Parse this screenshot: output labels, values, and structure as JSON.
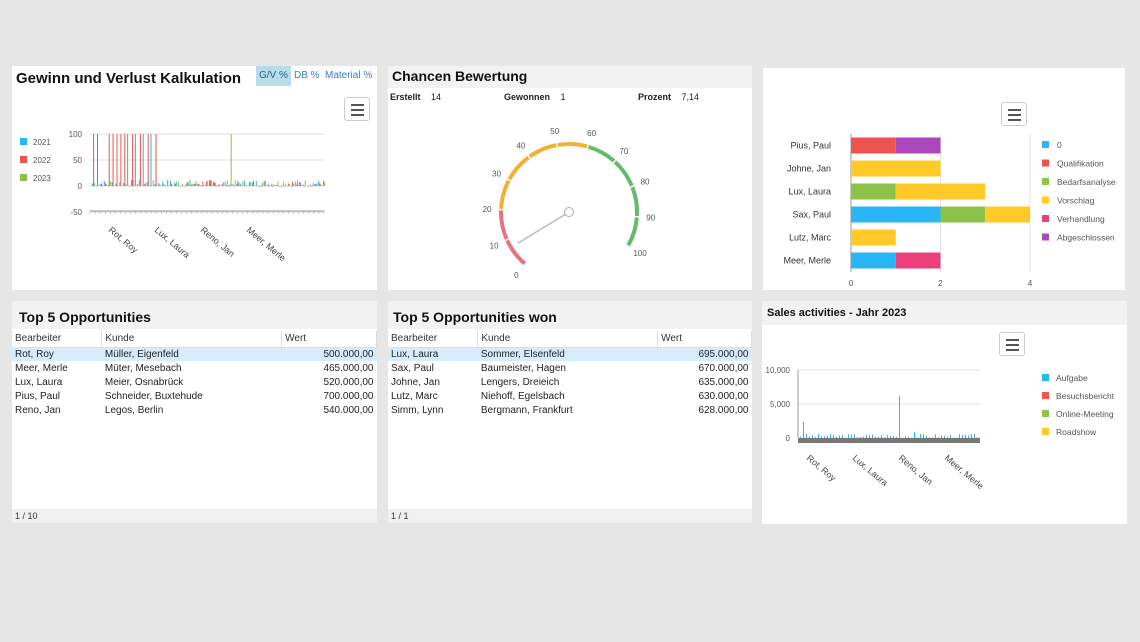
{
  "gv": {
    "title": "Gewinn und Verlust Kalkulation",
    "tabs": [
      "G/V %",
      "DB %",
      "Material %"
    ],
    "active_tab": "G/V %",
    "chart_data": {
      "type": "bar",
      "series": [
        {
          "name": "2021",
          "color": "#29b6f6"
        },
        {
          "name": "2022",
          "color": "#ef5350"
        },
        {
          "name": "2023",
          "color": "#8bc34a"
        }
      ],
      "yticks": [
        "100",
        "50",
        "0",
        "-50"
      ],
      "ylim": [
        -50,
        100
      ],
      "xtick_labels": [
        "Rot, Roy",
        "Lux, Laura",
        "Reno, Jan",
        "Meer, Merle"
      ]
    }
  },
  "chancen": {
    "title": "Chancen Bewertung",
    "erstellt_label": "Erstellt",
    "erstellt_value": "14",
    "gewonnen_label": "Gewonnen",
    "gewonnen_value": "1",
    "prozent_label": "Prozent",
    "prozent_value": "7,14",
    "gauge": {
      "value": 7.14,
      "min": 0,
      "max": 100,
      "ticks": [
        "0",
        "10",
        "20",
        "30",
        "40",
        "50",
        "60",
        "70",
        "80",
        "90",
        "100"
      ],
      "bands": [
        {
          "from": 0,
          "to": 20,
          "color": "#e57383"
        },
        {
          "from": 20,
          "to": 60,
          "color": "#f2b134"
        },
        {
          "from": 60,
          "to": 100,
          "color": "#66bb6a"
        }
      ]
    }
  },
  "stack": {
    "chart_data": {
      "type": "bar",
      "orientation": "horizontal",
      "stacked": true,
      "categories": [
        "Pius, Paul",
        "Johne, Jan",
        "Lux, Laura",
        "Sax, Paul",
        "Lutz, Marc",
        "Meer, Merle"
      ],
      "series": [
        {
          "name": "0",
          "color": "#29b6f6",
          "values": [
            0,
            0,
            0,
            2,
            0,
            1
          ]
        },
        {
          "name": "Qualifikation",
          "color": "#ef5350",
          "values": [
            1,
            0,
            0,
            0,
            0,
            0
          ]
        },
        {
          "name": "Bedarfsanalyse",
          "color": "#8bc34a",
          "values": [
            0,
            0,
            1,
            1,
            0,
            0
          ]
        },
        {
          "name": "Vorschlag",
          "color": "#ffca28",
          "values": [
            0,
            2,
            2,
            1,
            1,
            0
          ]
        },
        {
          "name": "Verhandlung",
          "color": "#ec407a",
          "values": [
            0,
            0,
            0,
            0,
            0,
            1
          ]
        },
        {
          "name": "Abgeschlossen",
          "color": "#ab47bc",
          "values": [
            1,
            0,
            0,
            0,
            0,
            0
          ]
        }
      ],
      "xticks": [
        "0",
        "2",
        "4"
      ],
      "xlim": [
        0,
        4
      ]
    }
  },
  "top5": {
    "title": "Top 5 Opportunities",
    "columns": [
      "Bearbeiter",
      "Kunde",
      "Wert"
    ],
    "rows": [
      [
        "Rot, Roy",
        "Müller, Eigenfeld",
        "500.000,00"
      ],
      [
        "Meer, Merle",
        "Müter, Mesebach",
        "465.000,00"
      ],
      [
        "Lux, Laura",
        "Meier, Osnabrück",
        "520.000,00"
      ],
      [
        "Pius, Paul",
        "Schneider, Buxtehude",
        "700.000,00"
      ],
      [
        "Reno, Jan",
        "Legos, Berlin",
        "540.000,00"
      ]
    ],
    "pager": "1 / 10"
  },
  "top5won": {
    "title": "Top 5 Opportunities won",
    "columns": [
      "Bearbeiter",
      "Kunde",
      "Wert"
    ],
    "rows": [
      [
        "Lux, Laura",
        "Sommer, Elsenfeld",
        "695.000,00"
      ],
      [
        "Sax, Paul",
        "Baumeister, Hagen",
        "670.000,00"
      ],
      [
        "Johne, Jan",
        "Lengers, Dreieich",
        "635.000,00"
      ],
      [
        "Lutz, Marc",
        "Niehoff, Egelsbach",
        "630.000,00"
      ],
      [
        "Simm, Lynn",
        "Bergmann, Frankfurt",
        "628.000,00"
      ]
    ],
    "pager": "1 / 1"
  },
  "sales": {
    "title": "Sales activities - Jahr 2023",
    "chart_data": {
      "type": "bar",
      "series": [
        {
          "name": "Aufgabe",
          "color": "#29b6f6"
        },
        {
          "name": "Besuchsbericht",
          "color": "#ef5350"
        },
        {
          "name": "Online-Meeting",
          "color": "#8bc34a"
        },
        {
          "name": "Roadshow",
          "color": "#ffca28"
        }
      ],
      "yticks": [
        "10,000",
        "5,000",
        "0"
      ],
      "ylim": [
        0,
        10000
      ],
      "xtick_labels": [
        "Rot, Roy",
        "Lux, Laura",
        "Reno, Jan",
        "Meer, Merle"
      ]
    }
  }
}
